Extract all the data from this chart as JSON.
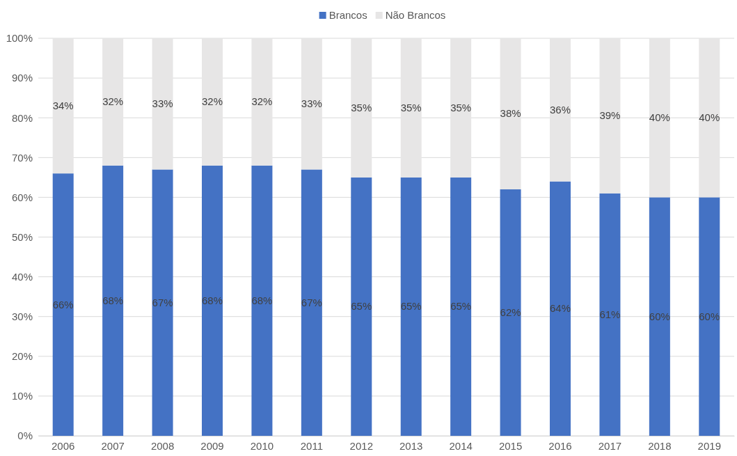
{
  "chart_data": {
    "type": "bar",
    "stacked": true,
    "categories": [
      "2006",
      "2007",
      "2008",
      "2009",
      "2010",
      "2011",
      "2012",
      "2013",
      "2014",
      "2015",
      "2016",
      "2017",
      "2018",
      "2019"
    ],
    "series": [
      {
        "name": "Brancos",
        "color": "#4472c4",
        "values": [
          66,
          68,
          67,
          68,
          68,
          67,
          65,
          65,
          65,
          62,
          64,
          61,
          60,
          60
        ],
        "value_labels": [
          "66%",
          "68%",
          "67%",
          "68%",
          "68%",
          "67%",
          "65%",
          "65%",
          "65%",
          "62%",
          "64%",
          "61%",
          "60%",
          "60%"
        ]
      },
      {
        "name": "Não Brancos",
        "color": "#e7e6e6",
        "values": [
          34,
          32,
          33,
          32,
          32,
          33,
          35,
          35,
          35,
          38,
          36,
          39,
          40,
          40
        ],
        "value_labels": [
          "34%",
          "32%",
          "33%",
          "32%",
          "32%",
          "33%",
          "35%",
          "35%",
          "35%",
          "38%",
          "36%",
          "39%",
          "40%",
          "40%"
        ]
      }
    ],
    "ylim": [
      0,
      100
    ],
    "yticks": [
      {
        "value": 0,
        "label": "0%"
      },
      {
        "value": 10,
        "label": "10%"
      },
      {
        "value": 20,
        "label": "20%"
      },
      {
        "value": 30,
        "label": "30%"
      },
      {
        "value": 40,
        "label": "40%"
      },
      {
        "value": 50,
        "label": "50%"
      },
      {
        "value": 60,
        "label": "60%"
      },
      {
        "value": 70,
        "label": "70%"
      },
      {
        "value": 80,
        "label": "80%"
      },
      {
        "value": 90,
        "label": "90%"
      },
      {
        "value": 100,
        "label": "100%"
      }
    ],
    "grid": "y",
    "legend": "top"
  }
}
